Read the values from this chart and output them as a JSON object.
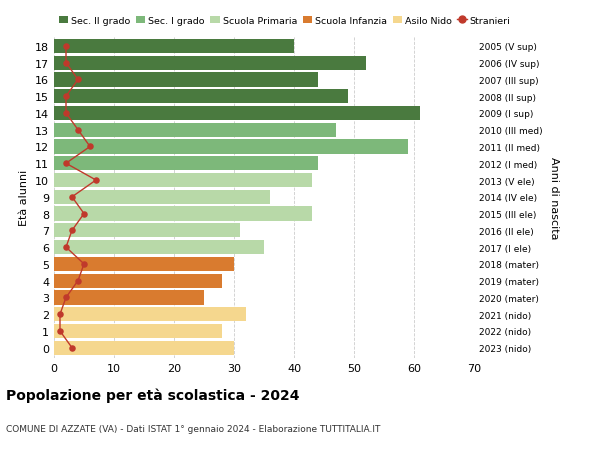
{
  "ages": [
    18,
    17,
    16,
    15,
    14,
    13,
    12,
    11,
    10,
    9,
    8,
    7,
    6,
    5,
    4,
    3,
    2,
    1,
    0
  ],
  "bar_values": [
    40,
    52,
    44,
    49,
    61,
    47,
    59,
    44,
    43,
    36,
    43,
    31,
    35,
    30,
    28,
    25,
    32,
    28,
    30
  ],
  "bar_colors": [
    "#4a7a3f",
    "#4a7a3f",
    "#4a7a3f",
    "#4a7a3f",
    "#4a7a3f",
    "#7db87a",
    "#7db87a",
    "#7db87a",
    "#b8d9a8",
    "#b8d9a8",
    "#b8d9a8",
    "#b8d9a8",
    "#b8d9a8",
    "#d97b2f",
    "#d97b2f",
    "#d97b2f",
    "#f5d78e",
    "#f5d78e",
    "#f5d78e"
  ],
  "stranieri_values": [
    2,
    2,
    4,
    2,
    2,
    4,
    6,
    2,
    7,
    3,
    5,
    3,
    2,
    5,
    4,
    2,
    1,
    1,
    3
  ],
  "right_labels": [
    "2005 (V sup)",
    "2006 (IV sup)",
    "2007 (III sup)",
    "2008 (II sup)",
    "2009 (I sup)",
    "2010 (III med)",
    "2011 (II med)",
    "2012 (I med)",
    "2013 (V ele)",
    "2014 (IV ele)",
    "2015 (III ele)",
    "2016 (II ele)",
    "2017 (I ele)",
    "2018 (mater)",
    "2019 (mater)",
    "2020 (mater)",
    "2021 (nido)",
    "2022 (nido)",
    "2023 (nido)"
  ],
  "legend_labels": [
    "Sec. II grado",
    "Sec. I grado",
    "Scuola Primaria",
    "Scuola Infanzia",
    "Asilo Nido",
    "Stranieri"
  ],
  "legend_colors": [
    "#4a7a3f",
    "#7db87a",
    "#b8d9a8",
    "#d97b2f",
    "#f5d78e",
    "#c0392b"
  ],
  "ylabel": "Età alunni",
  "right_ylabel": "Anni di nascita",
  "title": "Popolazione per età scolastica - 2024",
  "subtitle": "COMUNE DI AZZATE (VA) - Dati ISTAT 1° gennaio 2024 - Elaborazione TUTTITALIA.IT",
  "xlim": [
    0,
    70
  ],
  "xticks": [
    0,
    10,
    20,
    30,
    40,
    50,
    60,
    70
  ],
  "background_color": "#ffffff",
  "grid_color": "#cccccc"
}
